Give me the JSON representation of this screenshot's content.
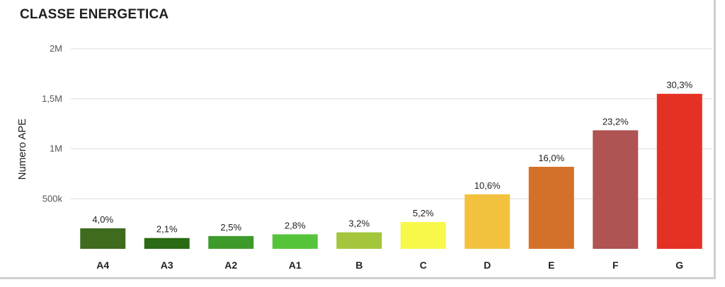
{
  "chart_data": {
    "type": "bar",
    "title": "CLASSE ENERGETICA",
    "ylabel": "Numero APE",
    "xlabel": "",
    "ylim": [
      0,
      2000000
    ],
    "yticks": [
      {
        "value": 500000,
        "label": "500k"
      },
      {
        "value": 1000000,
        "label": "1M"
      },
      {
        "value": 1500000,
        "label": "1,5M"
      },
      {
        "value": 2000000,
        "label": "2M"
      }
    ],
    "grid": true,
    "categories": [
      "A4",
      "A3",
      "A2",
      "A1",
      "B",
      "C",
      "D",
      "E",
      "F",
      "G"
    ],
    "values": [
      205000,
      108000,
      128000,
      145000,
      165000,
      268000,
      545000,
      820000,
      1185000,
      1550000
    ],
    "labels": [
      "4,0%",
      "2,1%",
      "2,5%",
      "2,8%",
      "3,2%",
      "5,2%",
      "10,6%",
      "16,0%",
      "23,2%",
      "30,3%"
    ],
    "colors": [
      "#3f6b1e",
      "#2a6a14",
      "#3f9a2c",
      "#55c43a",
      "#a3c63c",
      "#f8f84a",
      "#f2c23e",
      "#d3712a",
      "#b05353",
      "#e53124"
    ]
  }
}
